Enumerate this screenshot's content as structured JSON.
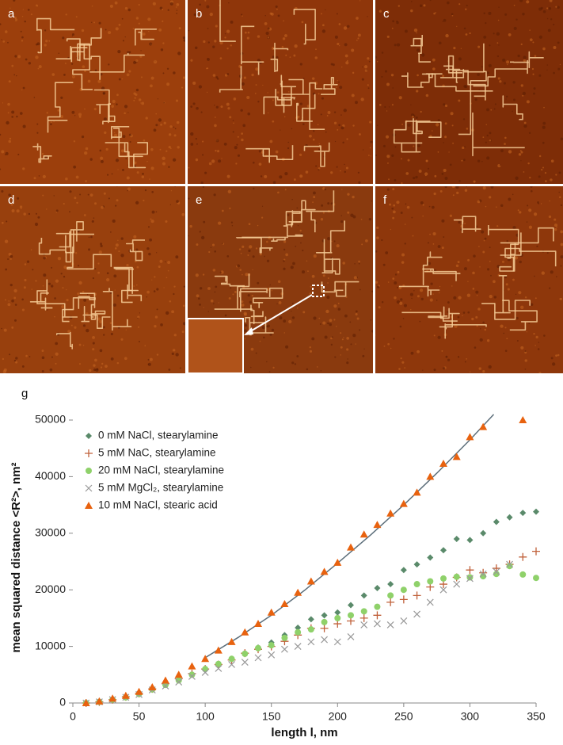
{
  "panels": [
    "a",
    "b",
    "c",
    "d",
    "e",
    "f"
  ],
  "chart_data": {
    "type": "scatter",
    "panel_label": "g",
    "xlabel": "length l, nm",
    "ylabel": "mean squared distance <R²>, nm²",
    "x": [
      10,
      20,
      30,
      40,
      50,
      60,
      70,
      80,
      90,
      100,
      110,
      120,
      130,
      140,
      150,
      160,
      170,
      180,
      190,
      200,
      210,
      220,
      230,
      240,
      250,
      260,
      270,
      280,
      290,
      300,
      310,
      320,
      330,
      340,
      350
    ],
    "xlim": [
      0,
      350
    ],
    "xticks": [
      0,
      50,
      100,
      150,
      200,
      250,
      300,
      350
    ],
    "ylim": [
      0,
      50000
    ],
    "yticks": [
      0,
      10000,
      20000,
      30000,
      40000,
      50000
    ],
    "legend": "upper left",
    "series": [
      {
        "name": "0 mM NaCl, stearylamine",
        "color": "#5a8a6a",
        "marker": "diamond",
        "values": [
          0,
          300,
          700,
          1100,
          1800,
          2600,
          3500,
          4200,
          5000,
          5800,
          6800,
          7800,
          8800,
          9800,
          10700,
          12000,
          13300,
          14800,
          15500,
          16000,
          17300,
          19000,
          20300,
          21000,
          23500,
          24500,
          25700,
          27000,
          29000,
          28800,
          30000,
          32000,
          32800,
          33600,
          33800
        ]
      },
      {
        "name": "5 mM NaC, stearylamine",
        "color": "#c0603a",
        "marker": "plus",
        "values": [
          0,
          200,
          600,
          1100,
          1700,
          2500,
          3400,
          4300,
          5200,
          6000,
          6800,
          7600,
          8800,
          9500,
          10000,
          10900,
          12000,
          13200,
          13200,
          14000,
          14500,
          15000,
          15500,
          17800,
          18300,
          19000,
          20500,
          21000,
          22200,
          23500,
          23000,
          23800,
          24500,
          25800,
          26800
        ]
      },
      {
        "name": "20 mM NaCl, stearylamine",
        "color": "#8fd16a",
        "marker": "circle",
        "values": [
          0,
          200,
          600,
          1000,
          1600,
          2400,
          3200,
          4000,
          5000,
          6000,
          6900,
          7800,
          8700,
          9700,
          10200,
          11500,
          12500,
          13000,
          14300,
          15000,
          15500,
          16200,
          17000,
          19000,
          20000,
          21000,
          21500,
          22000,
          22300,
          22200,
          22400,
          22800,
          24200,
          22700,
          22100
        ]
      },
      {
        "name": "5 mM MgCl₂, stearylamine",
        "color": "#999999",
        "marker": "cross",
        "values": [
          0,
          200,
          600,
          1000,
          1500,
          2300,
          3000,
          3700,
          4700,
          5400,
          6100,
          6800,
          7200,
          8000,
          8500,
          9500,
          10000,
          10800,
          11200,
          10800,
          11700,
          13800,
          14000,
          13800,
          14500,
          15700,
          17800,
          20000,
          21000,
          22000,
          22800,
          23200,
          24500,
          null,
          null
        ]
      },
      {
        "name": "10 mM NaCl, stearic acid",
        "color": "#e8620f",
        "marker": "triangle",
        "values": [
          0,
          300,
          800,
          1300,
          2000,
          2800,
          4000,
          5000,
          6500,
          7800,
          9300,
          10800,
          12500,
          14000,
          16000,
          17500,
          19500,
          21500,
          23200,
          24800,
          27500,
          29800,
          31500,
          33500,
          35200,
          37200,
          40000,
          42300,
          43500,
          47000,
          48800,
          null,
          null,
          50000,
          null
        ]
      }
    ],
    "fit": {
      "color": "#5c6e7a",
      "x": [
        100,
        125,
        150,
        175,
        200,
        225,
        250,
        275,
        300,
        318
      ],
      "values": [
        8000,
        11600,
        15500,
        19900,
        24700,
        29700,
        35000,
        40600,
        46500,
        51000
      ]
    }
  }
}
